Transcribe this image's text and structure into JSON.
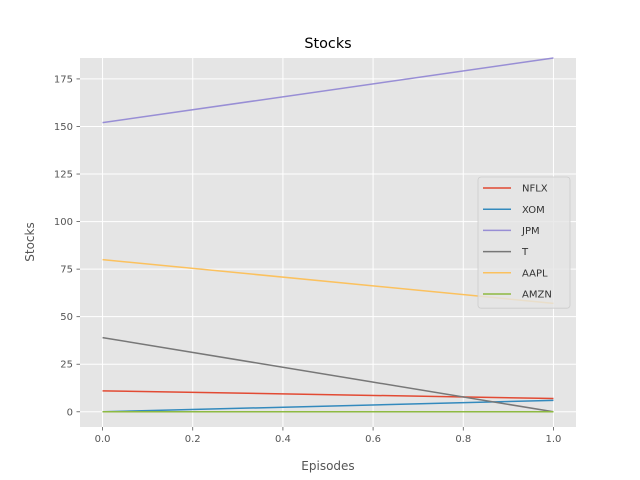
{
  "chart_data": {
    "type": "line",
    "title": "Stocks",
    "xlabel": "Episodes",
    "ylabel": "Stocks",
    "xlim": [
      -0.05,
      1.05
    ],
    "ylim": [
      -8,
      186
    ],
    "xticks": [
      0.0,
      0.2,
      0.4,
      0.6,
      0.8,
      1.0
    ],
    "xtick_labels": [
      "0.0",
      "0.2",
      "0.4",
      "0.6",
      "0.8",
      "1.0"
    ],
    "yticks": [
      0,
      25,
      50,
      75,
      100,
      125,
      150,
      175
    ],
    "ytick_labels": [
      "0",
      "25",
      "50",
      "75",
      "100",
      "125",
      "150",
      "175"
    ],
    "grid": true,
    "legend_position": "center-right",
    "x": [
      0.0,
      1.0
    ],
    "series": [
      {
        "name": "NFLX",
        "values": [
          11,
          7
        ],
        "color": "#E24A33"
      },
      {
        "name": "XOM",
        "values": [
          0,
          6
        ],
        "color": "#348ABD"
      },
      {
        "name": "JPM",
        "values": [
          152,
          186
        ],
        "color": "#988ED5"
      },
      {
        "name": "T",
        "values": [
          39,
          0
        ],
        "color": "#777777"
      },
      {
        "name": "AAPL",
        "values": [
          80,
          57
        ],
        "color": "#FBC15E"
      },
      {
        "name": "AMZN",
        "values": [
          0,
          0
        ],
        "color": "#8EBA42"
      }
    ]
  }
}
